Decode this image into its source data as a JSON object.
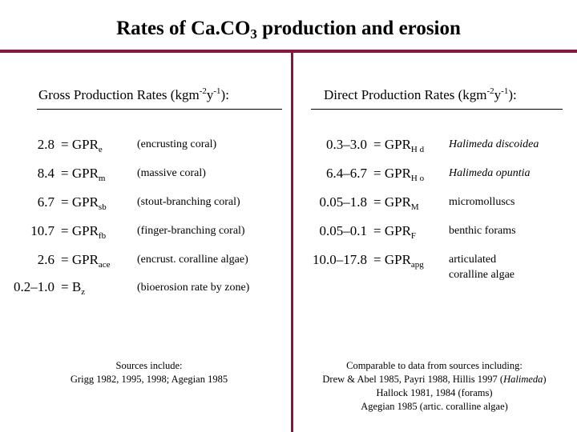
{
  "title": {
    "main": "Rates of Ca.CO",
    "sub": "3",
    "rest": " production and erosion"
  },
  "left": {
    "heading": {
      "text": "Gross Production Rates (kgm",
      "exp1": "-2",
      "mid": "y",
      "exp2": "-1",
      "tail": "):"
    },
    "rows": [
      {
        "rate": "2.8",
        "eq": "= GPR",
        "sub": "e",
        "desc": "(encrusting coral)"
      },
      {
        "rate": "8.4",
        "eq": "= GPR",
        "sub": "m",
        "desc": "(massive coral)"
      },
      {
        "rate": "6.7",
        "eq": "= GPR",
        "sub": "sb",
        "desc": "(stout-branching coral)"
      },
      {
        "rate": "10.7",
        "eq": "= GPR",
        "sub": "fb",
        "desc": "(finger-branching coral)"
      },
      {
        "rate": "2.6",
        "eq": "= GPR",
        "sub": "ace",
        "desc": "(encrust. coralline algae)"
      },
      {
        "rate": "0.2–1.0",
        "eq": "= B",
        "sub": "z",
        "desc": "(bioerosion rate by zone)"
      }
    ],
    "sources": {
      "line1": "Sources include:",
      "line2": "Grigg 1982, 1995, 1998; Agegian 1985"
    }
  },
  "right": {
    "heading": {
      "text": "Direct Production Rates (kgm",
      "exp1": "-2",
      "mid": "y",
      "exp2": "-1",
      "tail": "):"
    },
    "rows": [
      {
        "rate": "0.3–3.0",
        "eq": "= GPR",
        "sub": "H d",
        "desc": "Halimeda discoidea",
        "italic": true
      },
      {
        "rate": "6.4–6.7",
        "eq": "= GPR",
        "sub": "H o",
        "desc": "Halimeda opuntia",
        "italic": true
      },
      {
        "rate": "0.05–1.8",
        "eq": "= GPR",
        "sub": "M",
        "desc": "micromolluscs",
        "italic": false
      },
      {
        "rate": "0.05–0.1",
        "eq": "= GPR",
        "sub": "F",
        "desc": "benthic forams",
        "italic": false
      },
      {
        "rate": "10.0–17.8",
        "eq": "= GPR",
        "sub": "apg",
        "desc": "articulated",
        "desc2": "coralline algae",
        "italic": false
      }
    ],
    "sources": {
      "line1": "Comparable to data from sources including:",
      "line2a": "Drew & Abel 1985, Payri 1988, Hillis 1997  (",
      "line2b": "Halimeda",
      "line2c": ")",
      "line3": "Hallock 1981, 1984  (forams)",
      "line4": "Agegian 1985  (artic. coralline algae)"
    }
  },
  "colors": {
    "accent": "#8a1538"
  }
}
